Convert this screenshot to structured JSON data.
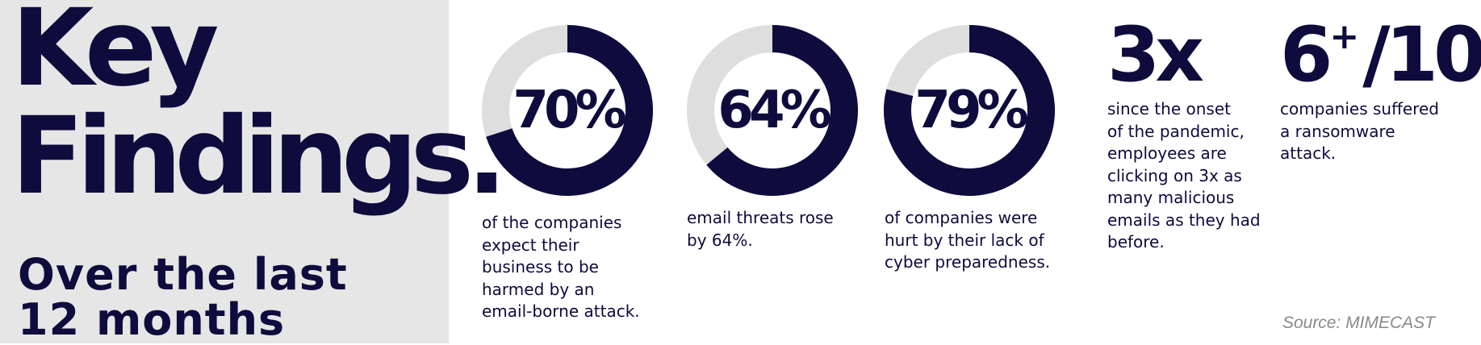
{
  "headline": {
    "line1": "Key",
    "line2": "Findings."
  },
  "subheadline": {
    "line1": "Over the last",
    "line2": "12 months"
  },
  "colors": {
    "navy": "#0e0b3d",
    "track": "#dedede",
    "panel": "#e6e6e6"
  },
  "chart_data": [
    {
      "type": "pie",
      "label": "70%",
      "value": 70,
      "caption": [
        "of the companies",
        "expect their",
        "business to be",
        "harmed by an",
        "email-borne attack."
      ]
    },
    {
      "type": "pie",
      "label": "64%",
      "value": 64,
      "caption": [
        "email threats rose",
        "by 64%."
      ]
    },
    {
      "type": "pie",
      "label": "79%",
      "value": 79,
      "caption": [
        "of companies were",
        "hurt by their lack of",
        "cyber preparedness."
      ]
    }
  ],
  "stats": [
    {
      "main": "3x",
      "sup": "",
      "suffix": "",
      "caption": [
        "since the onset",
        "of the pandemic,",
        "employees are",
        "clicking on 3x as",
        "many malicious",
        "emails as they had",
        "before."
      ]
    },
    {
      "main": "6",
      "sup": "+",
      "suffix": "/10",
      "caption": [
        "companies suffered",
        "a ransomware",
        "attack."
      ]
    }
  ],
  "source": "Source: MIMECAST"
}
